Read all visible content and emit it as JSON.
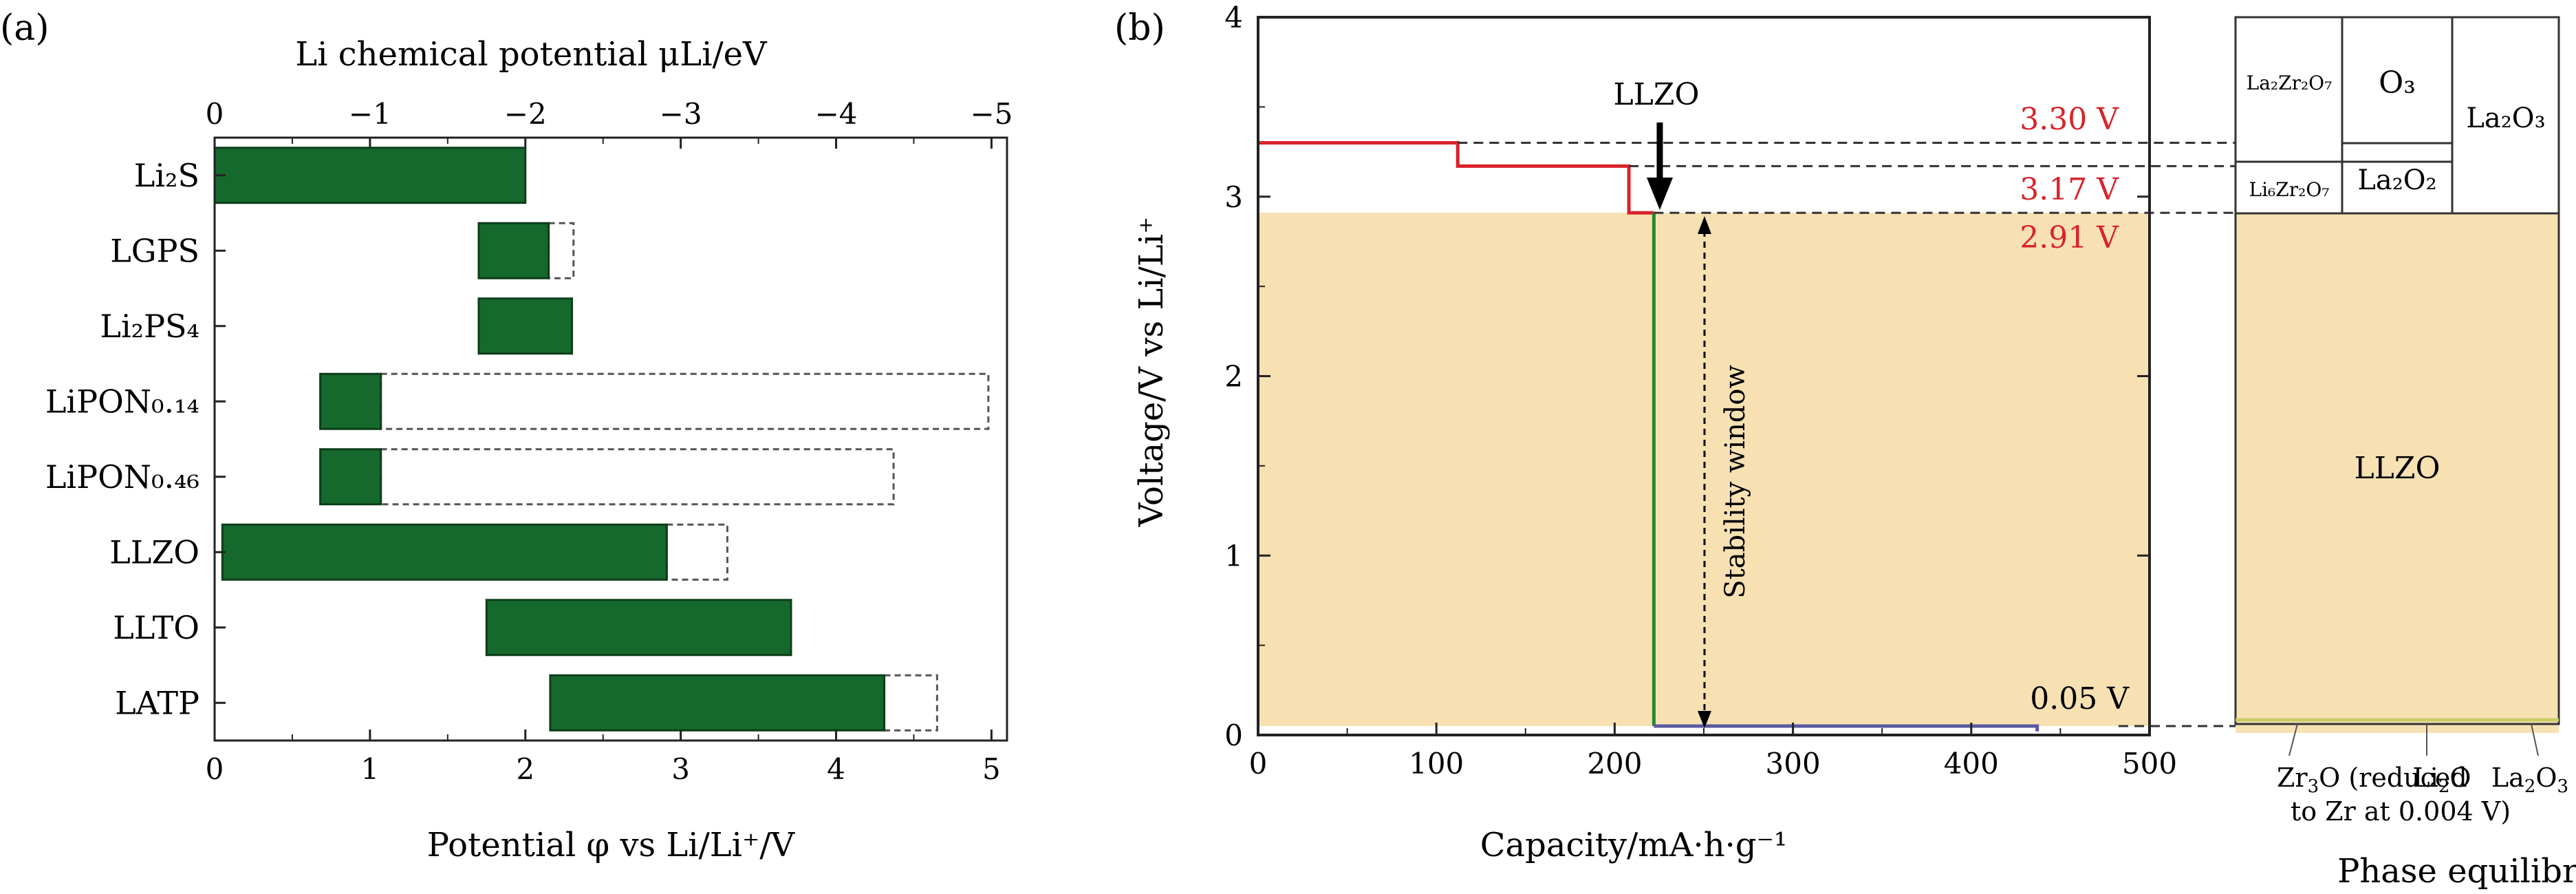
{
  "panel_a_label": "(a)",
  "panel_b_label": "(b)",
  "chart_data": [
    {
      "type": "bar",
      "orientation": "horizontal",
      "top_axis_label": "Li chemical potential μLi/eV",
      "top_ticks": [
        "0",
        "−1",
        "−2",
        "−3",
        "−4",
        "−5"
      ],
      "xlabel": "Potential φ vs Li/Li⁺/V",
      "xticks": [
        "0",
        "1",
        "2",
        "3",
        "4",
        "5"
      ],
      "xlim": [
        0,
        5.1
      ],
      "categories": [
        "Li₂S",
        "LGPS",
        "Li₂PS₄",
        "LiPON₀.₁₄",
        "LiPON₀.₄₆",
        "LLZO",
        "LLTO",
        "LATP"
      ],
      "series": [
        {
          "values": [
            [
              0,
              2.0
            ],
            [
              1.7,
              2.15
            ],
            [
              1.7,
              2.3
            ],
            [
              0.68,
              1.07
            ],
            [
              0.68,
              1.07
            ],
            [
              0.05,
              2.91
            ],
            [
              1.75,
              3.71
            ],
            [
              2.16,
              4.31
            ]
          ]
        },
        {
          "values": [
            null,
            [
              2.15,
              2.31
            ],
            null,
            [
              1.07,
              4.98
            ],
            [
              1.07,
              4.37
            ],
            [
              2.91,
              3.3
            ],
            null,
            [
              4.31,
              4.65
            ]
          ]
        }
      ],
      "colors": {
        "bar": "#15692c",
        "edge": "#0d3d1a"
      }
    },
    {
      "type": "line",
      "xlabel": "Capacity/mA·h·g⁻¹",
      "ylabel": "Voltage/V vs Li/Li⁺",
      "xticks": [
        "0",
        "100",
        "200",
        "300",
        "400",
        "500"
      ],
      "yticks": [
        "0",
        "1",
        "2",
        "3",
        "4"
      ],
      "xlim": [
        0,
        500
      ],
      "ylim": [
        0,
        4
      ],
      "stability_window": [
        0.05,
        2.91
      ],
      "stability_label": "Stability window",
      "arrow_label": "LLZO",
      "voltage_labels": [
        "3.30 V",
        "3.17 V",
        "2.91 V",
        "0.05 V"
      ],
      "series": [
        {
          "color": "#d8232a",
          "x": [
            0,
            112,
            112,
            208,
            208,
            222
          ],
          "y": [
            3.3,
            3.3,
            3.17,
            3.17,
            2.91,
            2.91
          ]
        },
        {
          "color": "#2a8a2a",
          "x": [
            222,
            222
          ],
          "y": [
            2.91,
            0.05
          ]
        },
        {
          "color": "#5a5aa0",
          "x": [
            222,
            437,
            437
          ],
          "y": [
            0.05,
            0.05,
            0.02
          ]
        }
      ],
      "colors": {
        "window": "#f7e1b3"
      }
    },
    {
      "type": "table",
      "title": "Phase equilibria",
      "cells": [
        "La₂Zr₂O₇",
        "O₃",
        "La₂O₃",
        "Li₆Zr₂O₇",
        "La₂O₂",
        "LLZO"
      ],
      "bottom_labels": [
        "Zr₃O (reduced to Zr at 0.004 V)",
        "Li₂O",
        "La₂O₃"
      ],
      "ylim": [
        0,
        4
      ]
    }
  ]
}
